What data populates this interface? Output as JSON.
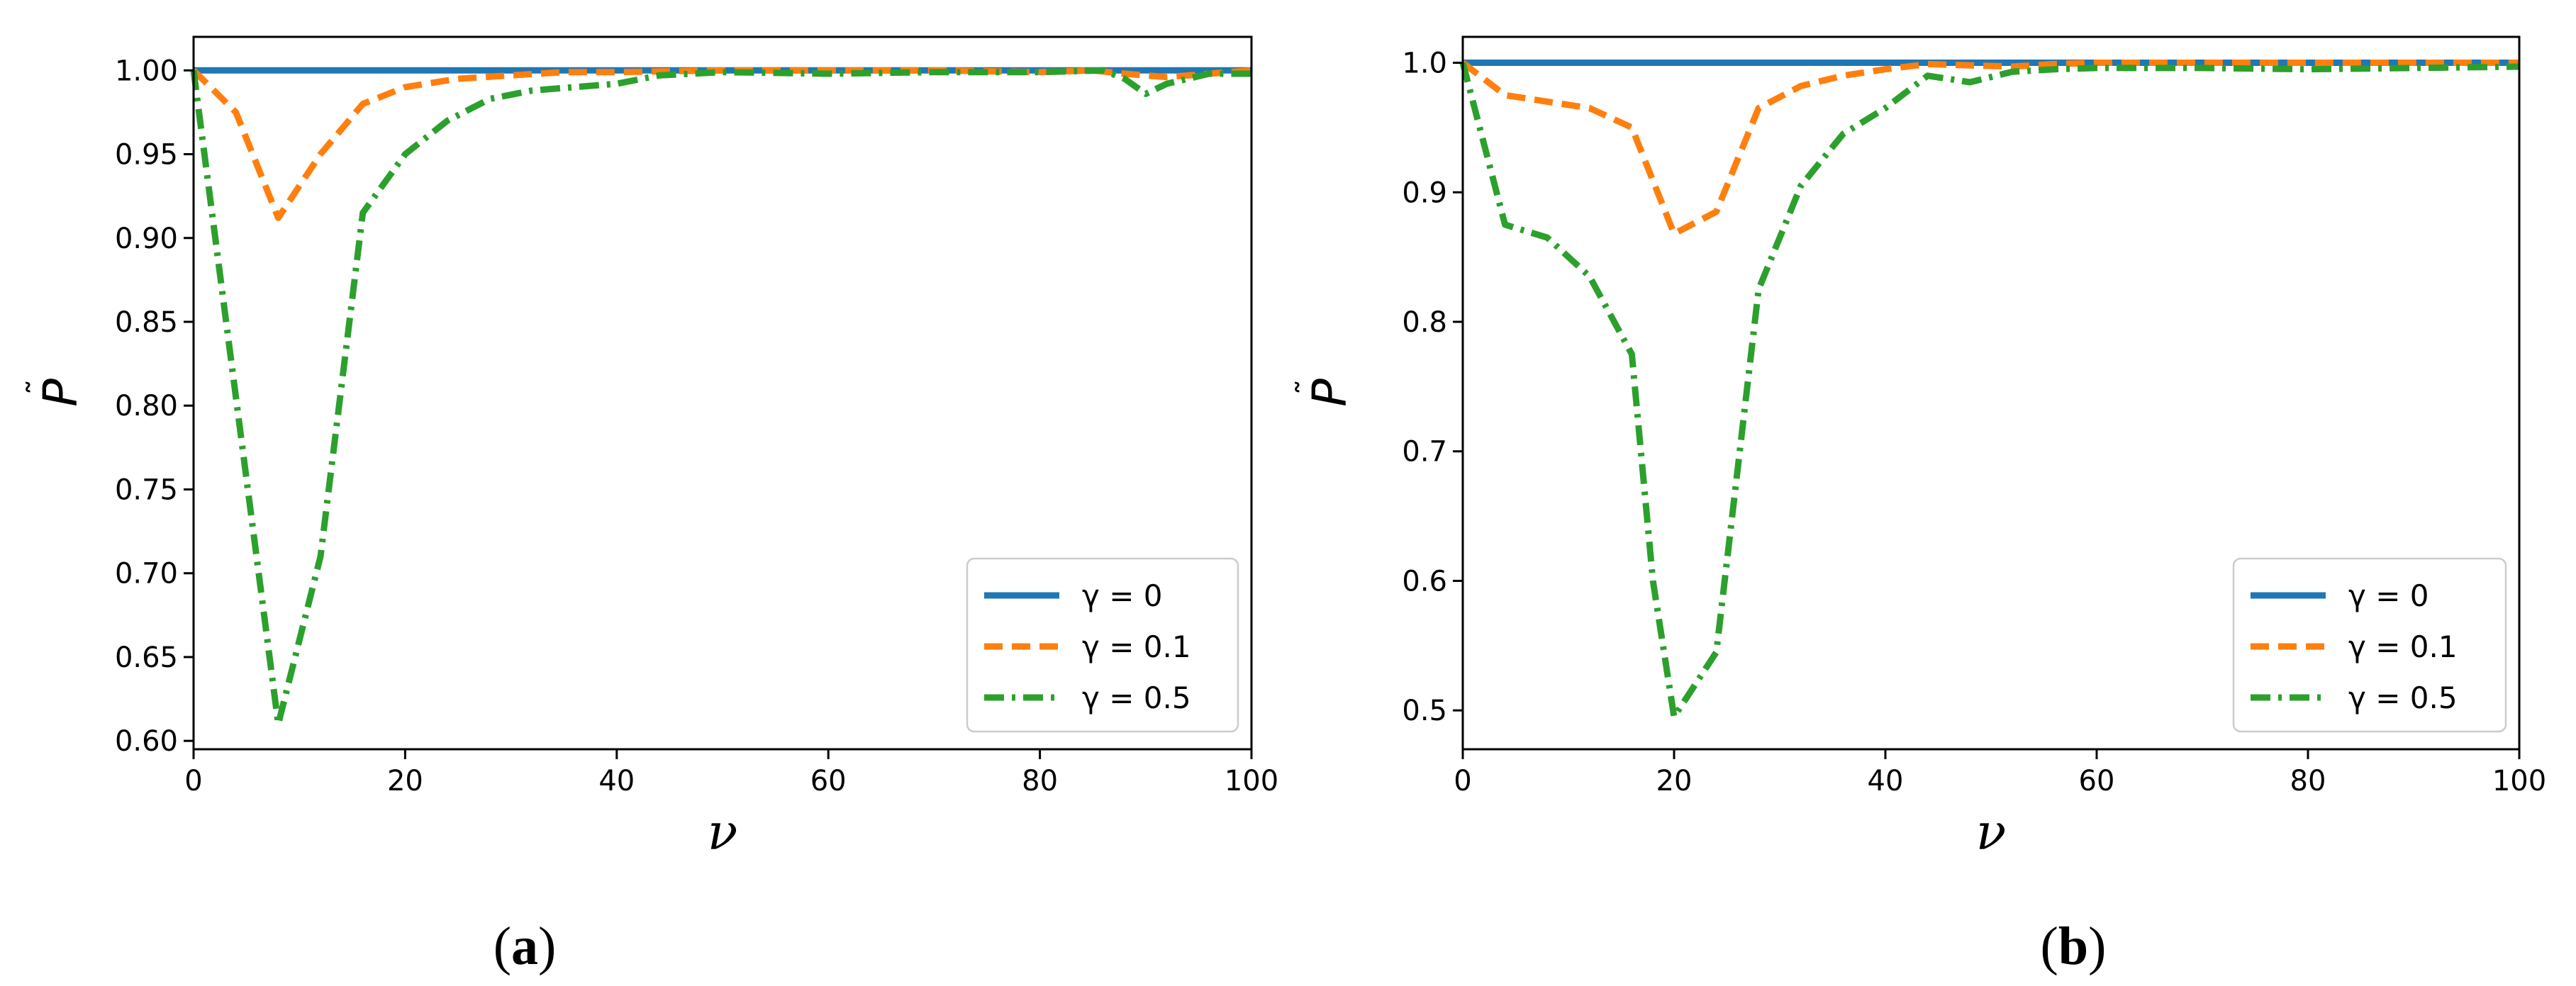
{
  "chart_data": [
    {
      "type": "line",
      "panel_label": "a",
      "xlabel": "ν",
      "ylabel": "P",
      "xlim": [
        0,
        100
      ],
      "ylim": [
        0.595,
        1.02
      ],
      "xticks": [
        0,
        20,
        40,
        60,
        80,
        100
      ],
      "xtick_labels": [
        "0",
        "20",
        "40",
        "60",
        "80",
        "100"
      ],
      "yticks": [
        0.6,
        0.65,
        0.7,
        0.75,
        0.8,
        0.85,
        0.9,
        0.95,
        1.0
      ],
      "ytick_labels": [
        "0.60",
        "0.65",
        "0.70",
        "0.75",
        "0.80",
        "0.85",
        "0.90",
        "0.95",
        "1.00"
      ],
      "grid": false,
      "legend_position": "lower-right",
      "series": [
        {
          "name": "γ = 0",
          "color": "#1f77b4",
          "style": "solid",
          "x": [
            0,
            100
          ],
          "y": [
            1.0,
            1.0
          ]
        },
        {
          "name": "γ = 0.1",
          "color": "#ff7f0e",
          "style": "dashed",
          "x": [
            0,
            4,
            8,
            12,
            16,
            20,
            25,
            30,
            35,
            40,
            50,
            60,
            70,
            80,
            85,
            88,
            92,
            96,
            100
          ],
          "y": [
            1.0,
            0.975,
            0.912,
            0.95,
            0.98,
            0.99,
            0.995,
            0.997,
            0.999,
            0.999,
            1.0,
            1.0,
            1.0,
            0.999,
            1.0,
            0.998,
            0.996,
            0.998,
            1.0
          ]
        },
        {
          "name": "γ = 0.5",
          "color": "#2ca02c",
          "style": "dashdot",
          "x": [
            0,
            8,
            12,
            16,
            20,
            24,
            28,
            32,
            36,
            40,
            44,
            50,
            60,
            70,
            80,
            86,
            88,
            90,
            92,
            96,
            100
          ],
          "y": [
            1.0,
            0.61,
            0.71,
            0.915,
            0.95,
            0.97,
            0.983,
            0.988,
            0.99,
            0.992,
            0.997,
            0.999,
            0.998,
            0.999,
            0.999,
            1.0,
            0.995,
            0.986,
            0.992,
            0.998,
            0.998
          ]
        }
      ]
    },
    {
      "type": "line",
      "panel_label": "b",
      "xlabel": "ν",
      "ylabel": "P",
      "xlim": [
        0,
        100
      ],
      "ylim": [
        0.47,
        1.02
      ],
      "xticks": [
        0,
        20,
        40,
        60,
        80,
        100
      ],
      "xtick_labels": [
        "0",
        "20",
        "40",
        "60",
        "80",
        "100"
      ],
      "yticks": [
        0.5,
        0.6,
        0.7,
        0.8,
        0.9,
        1.0
      ],
      "ytick_labels": [
        "0.5",
        "0.6",
        "0.7",
        "0.8",
        "0.9",
        "1.0"
      ],
      "grid": false,
      "legend_position": "lower-right",
      "series": [
        {
          "name": "γ = 0",
          "color": "#1f77b4",
          "style": "solid",
          "x": [
            0,
            100
          ],
          "y": [
            1.0,
            1.0
          ]
        },
        {
          "name": "γ = 0.1",
          "color": "#ff7f0e",
          "style": "dashed",
          "x": [
            0,
            4,
            8,
            12,
            16,
            20,
            24,
            28,
            32,
            36,
            40,
            44,
            48,
            52,
            56,
            60,
            70,
            80,
            90,
            100
          ],
          "y": [
            1.0,
            0.975,
            0.97,
            0.965,
            0.95,
            0.868,
            0.885,
            0.965,
            0.982,
            0.99,
            0.995,
            0.999,
            0.998,
            0.997,
            0.999,
            1.0,
            1.0,
            1.0,
            1.0,
            1.0
          ]
        },
        {
          "name": "γ = 0.5",
          "color": "#2ca02c",
          "style": "dashdot",
          "x": [
            0,
            4,
            8,
            12,
            16,
            18,
            20,
            24,
            28,
            32,
            36,
            40,
            44,
            48,
            52,
            56,
            60,
            70,
            80,
            90,
            100
          ],
          "y": [
            1.0,
            0.875,
            0.865,
            0.835,
            0.775,
            0.6,
            0.495,
            0.545,
            0.825,
            0.905,
            0.945,
            0.965,
            0.99,
            0.985,
            0.993,
            0.995,
            0.996,
            0.996,
            0.995,
            0.996,
            0.997
          ]
        }
      ]
    }
  ]
}
